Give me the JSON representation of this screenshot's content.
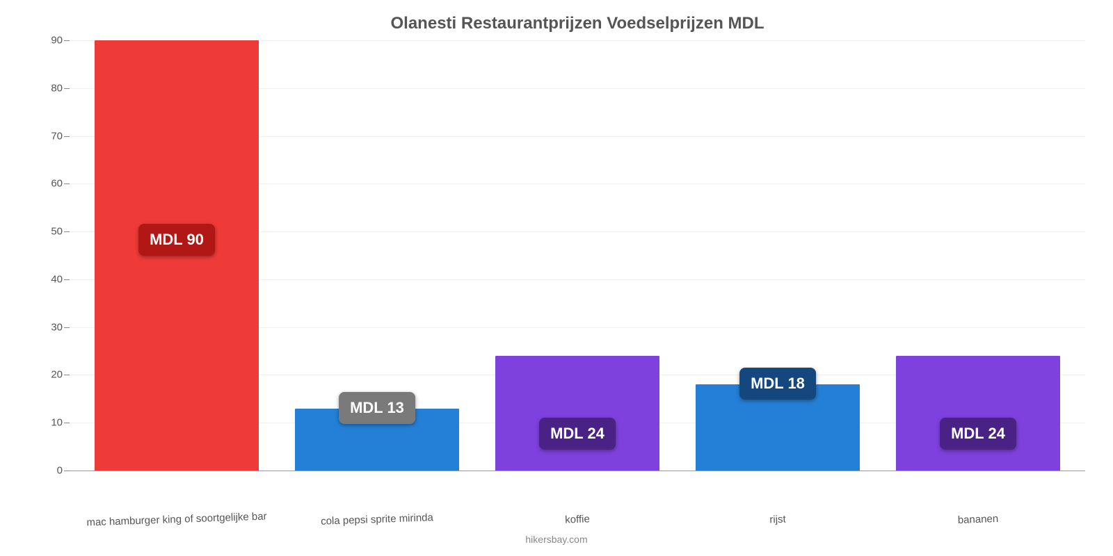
{
  "chart": {
    "type": "bar",
    "title": "Olanesti Restaurantprijzen Voedselprijzen MDL",
    "title_fontsize": 24,
    "title_color": "#555555",
    "background_color": "#ffffff",
    "grid_color": "#f0f0f0",
    "axis_color": "#999999",
    "tick_label_color": "#555555",
    "tick_fontsize": 15,
    "ylim": [
      0,
      90
    ],
    "ytick_step": 10,
    "yticks": [
      0,
      10,
      20,
      30,
      40,
      50,
      60,
      70,
      80,
      90
    ],
    "bar_width_pct": 82,
    "categories": [
      "mac hamburger king of soortgelijke bar",
      "cola pepsi sprite mirinda",
      "koffie",
      "rijst",
      "bananen"
    ],
    "values": [
      90,
      13,
      24,
      18,
      24
    ],
    "value_labels": [
      "MDL 90",
      "MDL 13",
      "MDL 24",
      "MDL 18",
      "MDL 24"
    ],
    "bar_colors": [
      "#ef3b38",
      "#2480d7",
      "#7f41de",
      "#2480d7",
      "#7f41de"
    ],
    "label_bg_colors": [
      "#b01715",
      "#7a7a7a",
      "#4a2185",
      "#14477d",
      "#4a2185"
    ],
    "value_label_fontsize": 22,
    "value_label_color": "#ffffff",
    "attribution": "hikersbay.com"
  }
}
